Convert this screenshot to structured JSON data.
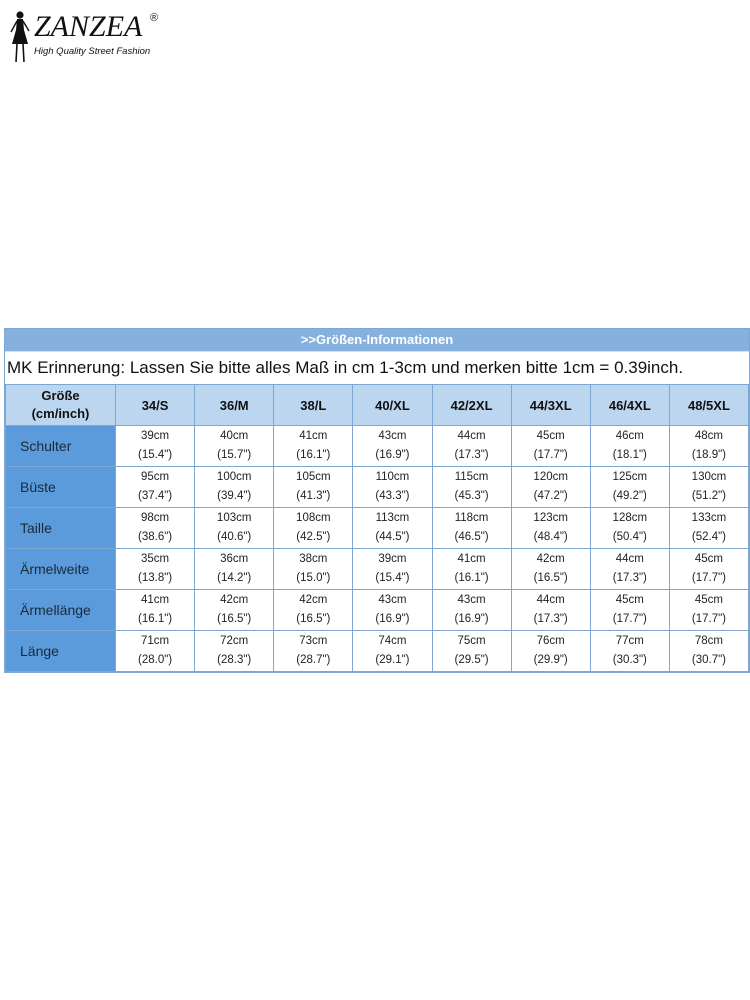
{
  "brand": {
    "name": "ZANZEA",
    "registered": "®",
    "tagline": "High Quality Street Fashion"
  },
  "table": {
    "banner": ">>Größen-Informationen",
    "reminder": "MK Erinnerung: Lassen Sie bitte alles Maß in cm 1-3cm und merken bitte 1cm = 0.39inch.",
    "corner_line1": "Größe",
    "corner_line2": "(cm/inch)",
    "sizes": [
      "34/S",
      "36/M",
      "38/L",
      "40/XL",
      "42/2XL",
      "44/3XL",
      "46/4XL",
      "48/5XL"
    ],
    "rows": [
      {
        "label": "Schulter",
        "cm": [
          "39cm",
          "40cm",
          "41cm",
          "43cm",
          "44cm",
          "45cm",
          "46cm",
          "48cm"
        ],
        "inch": [
          "(15.4\")",
          "(15.7\")",
          "(16.1\")",
          "(16.9\")",
          "(17.3\")",
          "(17.7\")",
          "(18.1\")",
          "(18.9\")"
        ]
      },
      {
        "label": "Büste",
        "cm": [
          "95cm",
          "100cm",
          "105cm",
          "110cm",
          "115cm",
          "120cm",
          "125cm",
          "130cm"
        ],
        "inch": [
          "(37.4\")",
          "(39.4\")",
          "(41.3\")",
          "(43.3\")",
          "(45.3\")",
          "(47.2\")",
          "(49.2\")",
          "(51.2\")"
        ]
      },
      {
        "label": "Taille",
        "cm": [
          "98cm",
          "103cm",
          "108cm",
          "113cm",
          "118cm",
          "123cm",
          "128cm",
          "133cm"
        ],
        "inch": [
          "(38.6\")",
          "(40.6\")",
          "(42.5\")",
          "(44.5\")",
          "(46.5\")",
          "(48.4\")",
          "(50.4\")",
          "(52.4\")"
        ]
      },
      {
        "label": "Ärmelweite",
        "cm": [
          "35cm",
          "36cm",
          "38cm",
          "39cm",
          "41cm",
          "42cm",
          "44cm",
          "45cm"
        ],
        "inch": [
          "(13.8\")",
          "(14.2\")",
          "(15.0\")",
          "(15.4\")",
          "(16.1\")",
          "(16.5\")",
          "(17.3\")",
          "(17.7\")"
        ]
      },
      {
        "label": "Ärmellänge",
        "cm": [
          "41cm",
          "42cm",
          "42cm",
          "43cm",
          "43cm",
          "44cm",
          "45cm",
          "45cm"
        ],
        "inch": [
          "(16.1\")",
          "(16.5\")",
          "(16.5\")",
          "(16.9\")",
          "(16.9\")",
          "(17.3\")",
          "(17.7\")",
          "(17.7\")"
        ]
      },
      {
        "label": "Länge",
        "cm": [
          "71cm",
          "72cm",
          "73cm",
          "74cm",
          "75cm",
          "76cm",
          "77cm",
          "78cm"
        ],
        "inch": [
          "(28.0\")",
          "(28.3\")",
          "(28.7\")",
          "(29.1\")",
          "(29.5\")",
          "(29.9\")",
          "(30.3\")",
          "(30.7\")"
        ]
      }
    ]
  },
  "colors": {
    "banner": "#86b1de",
    "header": "#bcd6f0",
    "rowhead": "#5b9bdb",
    "border": "#7da7d0"
  }
}
